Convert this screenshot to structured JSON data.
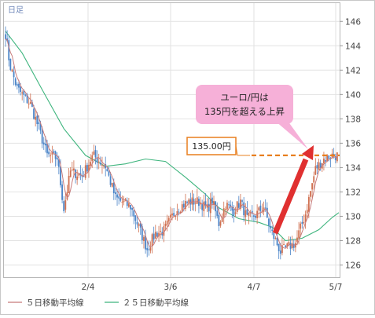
{
  "chart_data": {
    "type": "candlestick",
    "period_label": "日足",
    "x_ticks": [
      "2/4",
      "3/6",
      "4/7",
      "5/7"
    ],
    "y_ticks": [
      126,
      128,
      130,
      132,
      134,
      136,
      138,
      140,
      142,
      144,
      146
    ],
    "ylim": [
      125,
      147.5
    ],
    "grid": true,
    "legend_position": "bottom-left",
    "colors": {
      "up": "#d07050",
      "down": "#4a84c8",
      "ma5": "#c77b7b",
      "ma25": "#3fb57e",
      "accent": "#e03030",
      "level": "#e87f1e",
      "callout": "#f6b0d8"
    },
    "series": [
      {
        "name": "５日移動平均線",
        "role": "ma5"
      },
      {
        "name": "２５日移動平均線",
        "role": "ma25"
      }
    ],
    "ma25": [
      [
        0,
        145.2
      ],
      [
        10,
        143.4
      ],
      [
        22,
        140.4
      ],
      [
        35,
        137.2
      ],
      [
        48,
        135.0
      ],
      [
        60,
        134.1
      ],
      [
        72,
        134.3
      ],
      [
        84,
        134.7
      ],
      [
        96,
        134.5
      ],
      [
        108,
        133.2
      ],
      [
        120,
        131.8
      ],
      [
        128,
        130.7
      ],
      [
        140,
        129.8
      ],
      [
        152,
        129.5
      ],
      [
        160,
        129.1
      ],
      [
        168,
        128.0
      ],
      [
        178,
        128.2
      ],
      [
        188,
        128.9
      ],
      [
        196,
        129.9
      ],
      [
        200,
        130.3
      ]
    ],
    "reference_line": {
      "value": 135.0,
      "label": "135.00円"
    },
    "annotation": {
      "text_line1": "ユーロ/円は",
      "text_line2": "135円を超える上昇"
    }
  }
}
